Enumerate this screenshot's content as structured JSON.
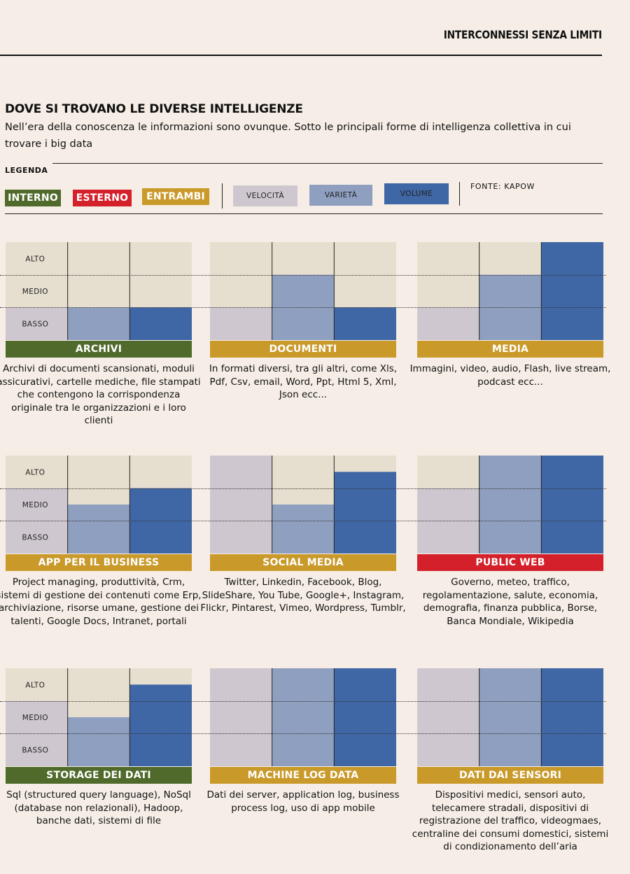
{
  "header": {
    "title": "INTERCONNESSI SENZA LIMITI"
  },
  "title": "DOVE SI TROVANO LE DIVERSE INTELLIGENZE",
  "subtitle": "Nell’era della conoscenza le informazioni sono ovunque. Sotto le principali forme di intelligenza collettiva in cui trovare i big data",
  "legend": {
    "label": "LEGENDA",
    "types": [
      {
        "label": "INTERNO",
        "color": "#4f6a2a"
      },
      {
        "label": "ESTERNO",
        "color": "#d4202a"
      },
      {
        "label": "ENTRAMBI",
        "color": "#c9992a"
      }
    ],
    "dimensions": [
      {
        "label": "VELOCITÀ",
        "color": "#cfc7d0"
      },
      {
        "label": "VARIETÀ",
        "color": "#8f9fc0"
      },
      {
        "label": "VOLUME",
        "color": "#3f66a5"
      }
    ],
    "source": "FONTE: KAPOW"
  },
  "colors": {
    "background": "#f6eee6",
    "empty_cell": "#e6dfcf"
  },
  "chart_data": {
    "type": "bar",
    "scale": [
      "BASSO",
      "MEDIO",
      "ALTO"
    ],
    "series_names": [
      "VELOCITÀ",
      "VARIETÀ",
      "VOLUME"
    ],
    "ylim": [
      0,
      3
    ],
    "panels": [
      {
        "title": "ARCHIVI",
        "type": "INTERNO",
        "values": [
          1,
          1,
          1
        ],
        "description": "Archivi di documenti scansionati, moduli assicurativi, cartelle mediche, file stampati che contengono la corrispondenza originale tra le organizzazioni e i loro clienti"
      },
      {
        "title": "DOCUMENTI",
        "type": "ENTRAMBI",
        "values": [
          1,
          2,
          1
        ],
        "description": "In formati diversi, tra gli altri, come Xls, Pdf, Csv, email, Word, Ppt, Html 5, Xml, Json ecc..."
      },
      {
        "title": "MEDIA",
        "type": "ENTRAMBI",
        "values": [
          1,
          2,
          3
        ],
        "description": "Immagini, video, audio, Flash, live stream, podcast ecc..."
      },
      {
        "title": "APP PER IL BUSINESS",
        "type": "ENTRAMBI",
        "values": [
          2,
          1.5,
          2
        ],
        "description": "Project managing, produttività, Crm, sistemi di gestione dei contenuti come Erp, archiviazione, risorse umane, gestione dei talenti,  Google Docs, Intranet, portali"
      },
      {
        "title": "SOCIAL MEDIA",
        "type": "ENTRAMBI",
        "values": [
          3,
          1.5,
          2.5
        ],
        "description": "Twitter, Linkedin, Facebook, Blog, SlideShare, You Tube, Google+, Instagram, Flickr, Pintarest, Vimeo, Wordpress, Tumblr,"
      },
      {
        "title": "PUBLIC WEB",
        "type": "ESTERNO",
        "values": [
          2,
          3,
          3
        ],
        "description": "Governo, meteo, traffico, regolamentazione, salute, economia, demografia, finanza pubblica, Borse, Banca Mondiale, Wikipedia"
      },
      {
        "title": "STORAGE DEI DATI",
        "type": "INTERNO",
        "values": [
          2,
          1.5,
          2.5
        ],
        "description": "Sql (structured query language), NoSql (database non relazionali), Hadoop, banche dati, sistemi di file"
      },
      {
        "title": "MACHINE LOG DATA",
        "type": "ENTRAMBI",
        "values": [
          3,
          3,
          3
        ],
        "description": "Dati dei server, application log, business process log, uso di app mobile"
      },
      {
        "title": "DATI DAI SENSORI",
        "type": "ENTRAMBI",
        "values": [
          3,
          3,
          3
        ],
        "description": "Dispositivi medici, sensori auto, telecamere stradali, dispositivi di registrazione del traffico, videogmaes, centraline dei consumi domestici, sistemi di condizionamento dell’aria"
      }
    ]
  }
}
